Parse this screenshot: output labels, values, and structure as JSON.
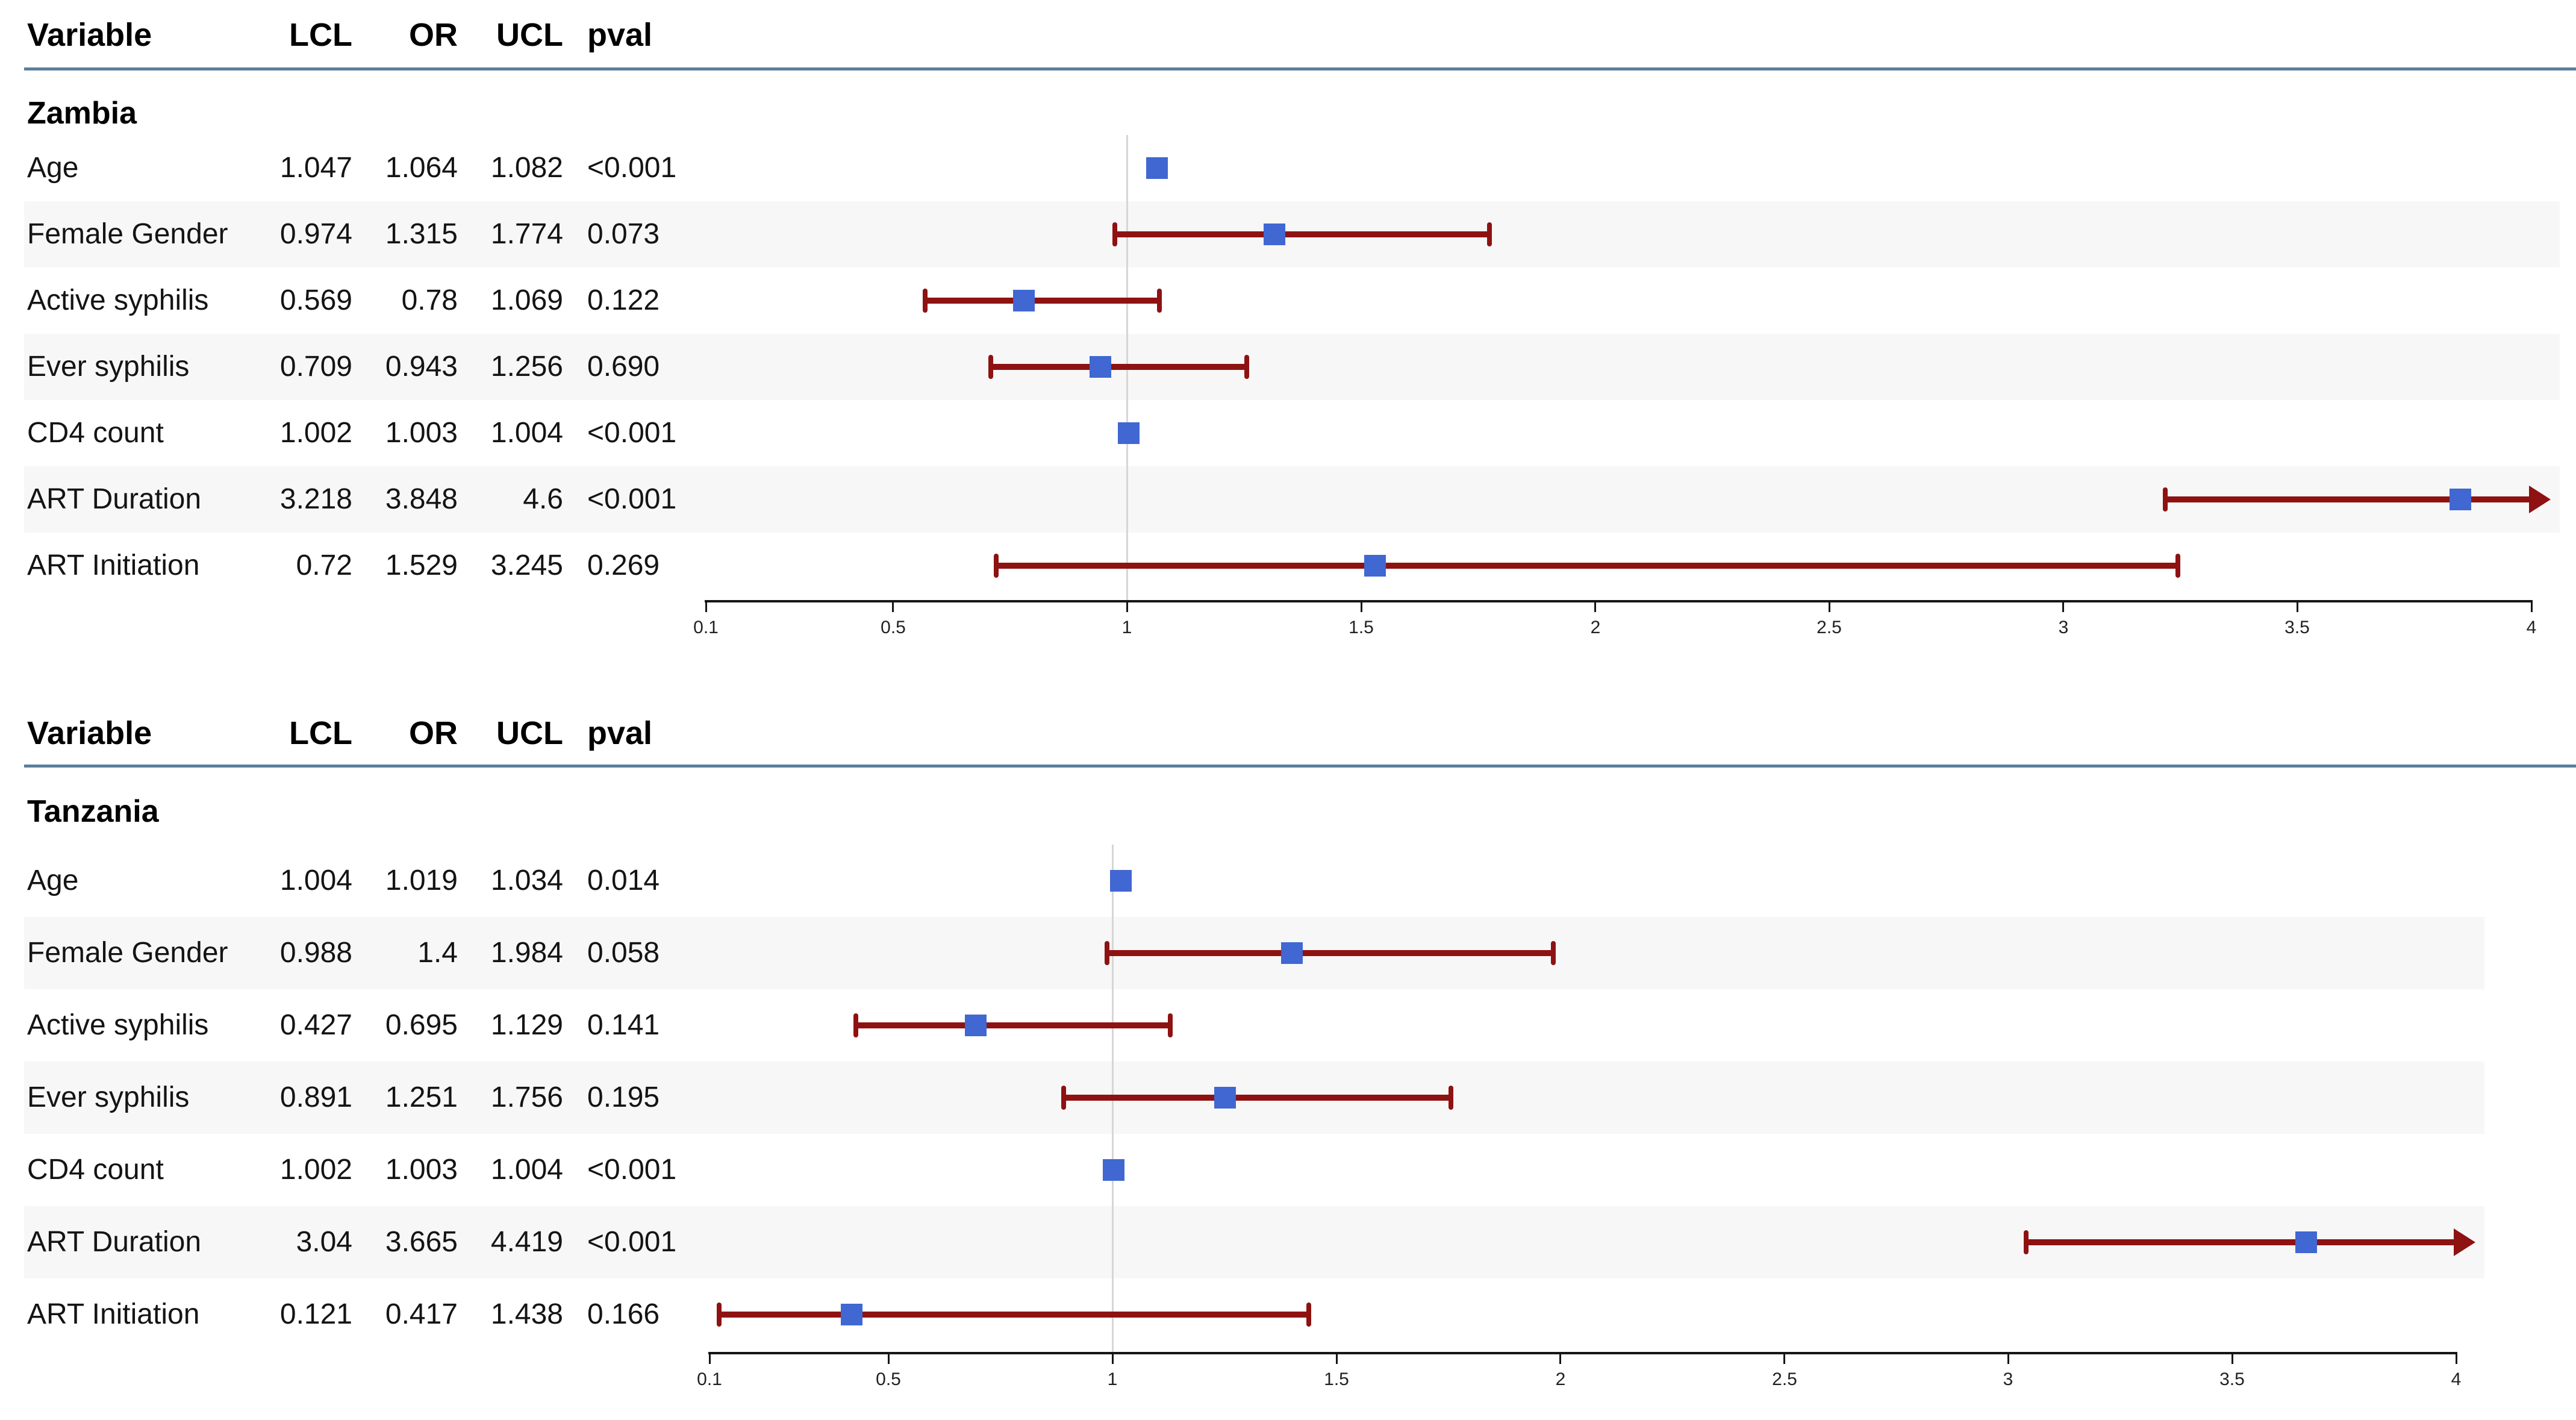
{
  "style": {
    "marker_color": "#4067d2",
    "ci_color": "#8e1212",
    "band_color": "#f7f7f7",
    "header_rule_color": "#5a7e9b",
    "reference_line_color": "#d6d6d6",
    "axis_color": "#151515",
    "background": "#ffffff"
  },
  "chart_data": [
    {
      "type": "forest",
      "group": "Zambia",
      "columns": [
        "Variable",
        "LCL",
        "OR",
        "UCL",
        "pval"
      ],
      "axis": {
        "scale": "linear",
        "min": 0.1,
        "max": 4,
        "ticks": [
          "0.1",
          "0.5",
          "1",
          "1.5",
          "2",
          "2.5",
          "3",
          "3.5",
          "4"
        ],
        "reference_line": 1,
        "grid": false
      },
      "rows": [
        {
          "variable": "Age",
          "lcl": 1.047,
          "or": 1.064,
          "ucl": 1.082,
          "lcl_text": "1.047",
          "or_text": "1.064",
          "ucl_text": "1.082",
          "pval": "<0.001"
        },
        {
          "variable": "Female Gender",
          "lcl": 0.974,
          "or": 1.315,
          "ucl": 1.774,
          "lcl_text": "0.974",
          "or_text": "1.315",
          "ucl_text": "1.774",
          "pval": "0.073"
        },
        {
          "variable": "Active syphilis",
          "lcl": 0.569,
          "or": 0.78,
          "ucl": 1.069,
          "lcl_text": "0.569",
          "or_text": "0.78",
          "ucl_text": "1.069",
          "pval": "0.122"
        },
        {
          "variable": "Ever syphilis",
          "lcl": 0.709,
          "or": 0.943,
          "ucl": 1.256,
          "lcl_text": "0.709",
          "or_text": "0.943",
          "ucl_text": "1.256",
          "pval": "0.690"
        },
        {
          "variable": "CD4 count",
          "lcl": 1.002,
          "or": 1.003,
          "ucl": 1.004,
          "lcl_text": "1.002",
          "or_text": "1.003",
          "ucl_text": "1.004",
          "pval": "<0.001"
        },
        {
          "variable": "ART Duration",
          "lcl": 3.218,
          "or": 3.848,
          "ucl": 4.6,
          "lcl_text": "3.218",
          "or_text": "3.848",
          "ucl_text": "4.6",
          "pval": "<0.001"
        },
        {
          "variable": "ART Initiation",
          "lcl": 0.72,
          "or": 1.529,
          "ucl": 3.245,
          "lcl_text": "0.72",
          "or_text": "1.529",
          "ucl_text": "3.245",
          "pval": "0.269"
        }
      ]
    },
    {
      "type": "forest",
      "group": "Tanzania",
      "columns": [
        "Variable",
        "LCL",
        "OR",
        "UCL",
        "pval"
      ],
      "axis": {
        "scale": "linear",
        "min": 0.1,
        "max": 4,
        "ticks": [
          "0.1",
          "0.5",
          "1",
          "1.5",
          "2",
          "2.5",
          "3",
          "3.5",
          "4"
        ],
        "reference_line": 1,
        "grid": false
      },
      "rows": [
        {
          "variable": "Age",
          "lcl": 1.004,
          "or": 1.019,
          "ucl": 1.034,
          "lcl_text": "1.004",
          "or_text": "1.019",
          "ucl_text": "1.034",
          "pval": "0.014"
        },
        {
          "variable": "Female Gender",
          "lcl": 0.988,
          "or": 1.4,
          "ucl": 1.984,
          "lcl_text": "0.988",
          "or_text": "1.4",
          "ucl_text": "1.984",
          "pval": "0.058"
        },
        {
          "variable": "Active syphilis",
          "lcl": 0.427,
          "or": 0.695,
          "ucl": 1.129,
          "lcl_text": "0.427",
          "or_text": "0.695",
          "ucl_text": "1.129",
          "pval": "0.141"
        },
        {
          "variable": "Ever syphilis",
          "lcl": 0.891,
          "or": 1.251,
          "ucl": 1.756,
          "lcl_text": "0.891",
          "or_text": "1.251",
          "ucl_text": "1.756",
          "pval": "0.195"
        },
        {
          "variable": "CD4 count",
          "lcl": 1.002,
          "or": 1.003,
          "ucl": 1.004,
          "lcl_text": "1.002",
          "or_text": "1.003",
          "ucl_text": "1.004",
          "pval": "<0.001"
        },
        {
          "variable": "ART Duration",
          "lcl": 3.04,
          "or": 3.665,
          "ucl": 4.419,
          "lcl_text": "3.04",
          "or_text": "3.665",
          "ucl_text": "4.419",
          "pval": "<0.001"
        },
        {
          "variable": "ART Initiation",
          "lcl": 0.121,
          "or": 0.417,
          "ucl": 1.438,
          "lcl_text": "0.121",
          "or_text": "0.417",
          "ucl_text": "1.438",
          "pval": "0.166"
        }
      ]
    }
  ]
}
